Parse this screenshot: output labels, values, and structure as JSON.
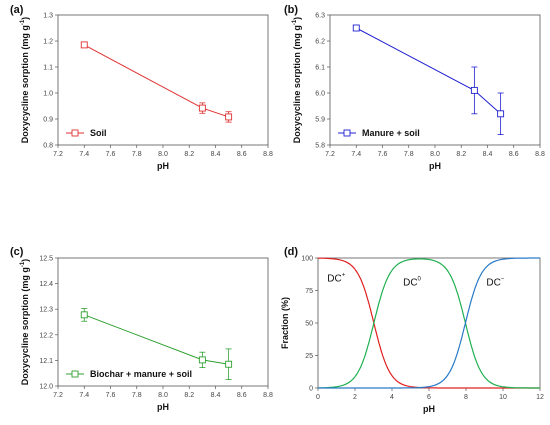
{
  "chart_data": [
    {
      "panel": "(a)",
      "type": "line",
      "xlabel": "pH",
      "ylabel": "Doxycycline sorption (mg g",
      "ylabel_sup": "-1",
      "ylabel_close": ")",
      "xlim": [
        7.2,
        8.8
      ],
      "ylim": [
        0.8,
        1.3
      ],
      "xticks": [
        "7.2",
        "7.4",
        "7.6",
        "7.8",
        "8.0",
        "8.2",
        "8.4",
        "8.6",
        "8.8"
      ],
      "yticks": [
        "0.8",
        "0.9",
        "1.0",
        "1.1",
        "1.2",
        "1.3"
      ],
      "color": "#e03030",
      "legend": "top-left? no: bottom-left",
      "series": [
        {
          "name": "Soil",
          "x": [
            7.4,
            8.3,
            8.5
          ],
          "y": [
            1.185,
            0.942,
            0.908
          ],
          "err": [
            0.007,
            0.02,
            0.02
          ]
        }
      ]
    },
    {
      "panel": "(b)",
      "type": "line",
      "xlabel": "pH",
      "ylabel": "Doxycycline sorption (mg g",
      "ylabel_sup": "-1",
      "ylabel_close": ")",
      "xlim": [
        7.2,
        8.8
      ],
      "ylim": [
        5.8,
        6.3
      ],
      "xticks": [
        "7.2",
        "7.4",
        "7.6",
        "7.8",
        "8.0",
        "8.2",
        "8.4",
        "8.6",
        "8.8"
      ],
      "yticks": [
        "5.8",
        "5.9",
        "6.0",
        "6.1",
        "6.2",
        "6.3"
      ],
      "color": "#2020d0",
      "legend": "bottom-left",
      "series": [
        {
          "name": "Manure + soil",
          "x": [
            7.4,
            8.3,
            8.5
          ],
          "y": [
            6.25,
            6.01,
            5.92
          ],
          "err": [
            0.007,
            0.09,
            0.08
          ]
        }
      ]
    },
    {
      "panel": "(c)",
      "type": "line",
      "xlabel": "pH",
      "ylabel": "Doxycycline sorption (mg g",
      "ylabel_sup": "-1",
      "ylabel_close": ")",
      "xlim": [
        7.2,
        8.8
      ],
      "ylim": [
        12.0,
        12.5
      ],
      "xticks": [
        "7.2",
        "7.4",
        "7.6",
        "7.8",
        "8.0",
        "8.2",
        "8.4",
        "8.6",
        "8.8"
      ],
      "yticks": [
        "12.0",
        "12.1",
        "12.2",
        "12.3",
        "12.4",
        "12.5"
      ],
      "color": "#30a030",
      "legend": "bottom-left",
      "series": [
        {
          "name": "Biochar + manure + soil",
          "x": [
            7.4,
            8.3,
            8.5
          ],
          "y": [
            12.278,
            12.102,
            12.085
          ],
          "err": [
            0.025,
            0.03,
            0.06
          ]
        }
      ]
    },
    {
      "panel": "(d)",
      "type": "line",
      "xlabel": "pH",
      "ylabel": "Fraction (%)",
      "xlim": [
        0,
        12
      ],
      "ylim": [
        0,
        100
      ],
      "xticks": [
        "0",
        "2",
        "4",
        "6",
        "8",
        "10",
        "12"
      ],
      "yticks": [
        "0",
        "25",
        "50",
        "75",
        "100"
      ],
      "annotations": [
        {
          "text": "DC",
          "sup": "+",
          "x": 0.5,
          "y": 82
        },
        {
          "text": "DC",
          "sup": "0",
          "x": 4.6,
          "y": 79
        },
        {
          "text": "DC",
          "sup": "−",
          "x": 9.1,
          "y": 79
        }
      ],
      "pKa": [
        3.02,
        7.97
      ],
      "series": [
        {
          "name": "DC+",
          "color": "#e02020"
        },
        {
          "name": "DC0",
          "color": "#20b050"
        },
        {
          "name": "DC-",
          "color": "#2a7ac8"
        }
      ]
    }
  ]
}
